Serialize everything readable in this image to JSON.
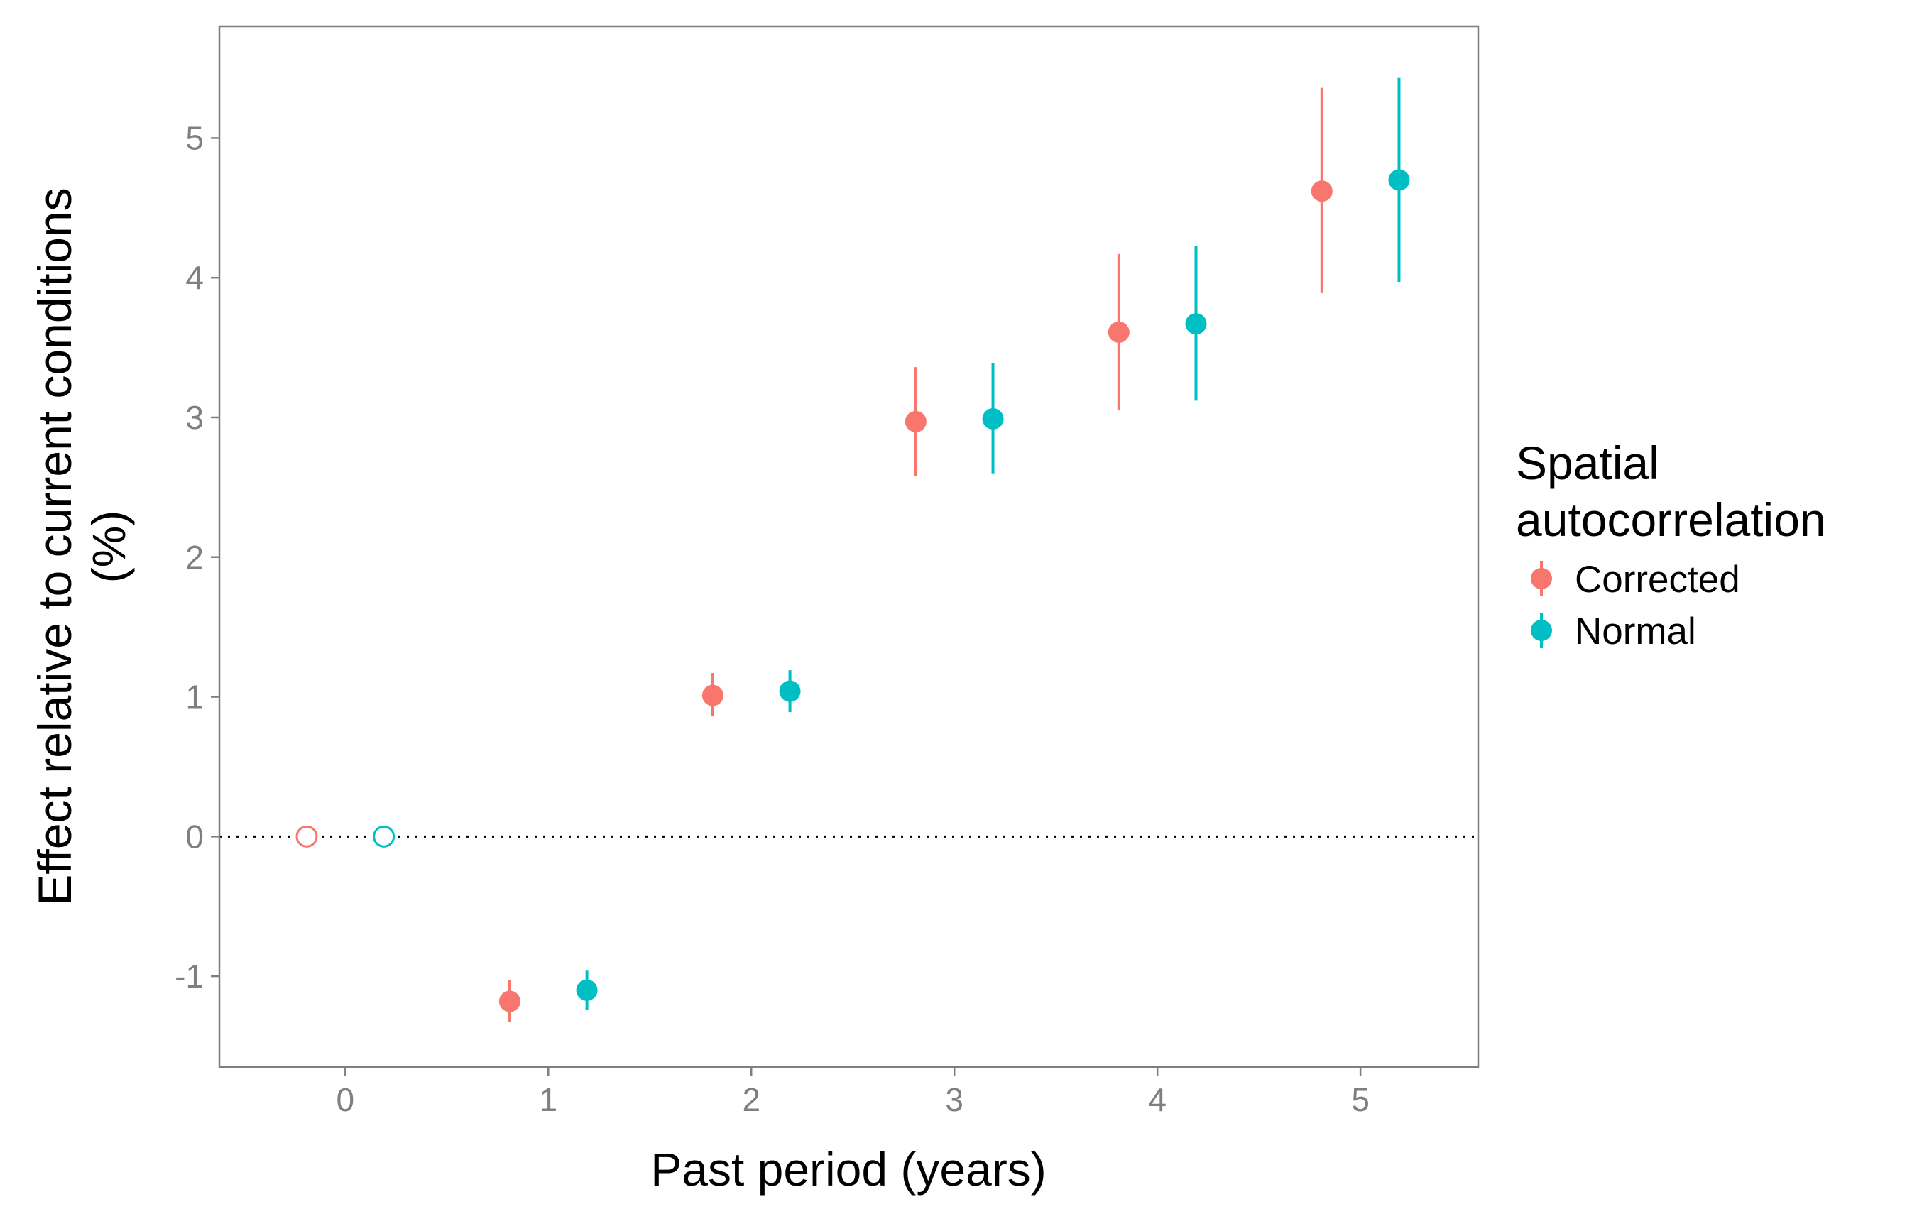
{
  "chart_data": {
    "type": "scatter",
    "subtype": "pointrange",
    "xlabel": "Past period (years)",
    "ylabel_lines": [
      "Effect relative to current conditions",
      "(%)"
    ],
    "x_ticks": [
      "0",
      "1",
      "2",
      "3",
      "4",
      "5"
    ],
    "y_ticks": [
      "-1",
      "0",
      "1",
      "2",
      "3",
      "4",
      "5"
    ],
    "xlim": [
      -0.62,
      5.58
    ],
    "ylim": [
      -1.65,
      5.8
    ],
    "dodge": 0.19,
    "reference_line": {
      "y": 0,
      "style": "dotted"
    },
    "legend": {
      "title_lines": [
        "Spatial",
        "autocorrelation"
      ],
      "position": "right"
    },
    "series": [
      {
        "name": "Corrected",
        "color": "#F8766D",
        "points": [
          {
            "x": 0,
            "y": 0,
            "lo": 0,
            "hi": 0,
            "filled": false
          },
          {
            "x": 1,
            "y": -1.18,
            "lo": -1.33,
            "hi": -1.03,
            "filled": true
          },
          {
            "x": 2,
            "y": 1.01,
            "lo": 0.86,
            "hi": 1.17,
            "filled": true
          },
          {
            "x": 3,
            "y": 2.97,
            "lo": 2.58,
            "hi": 3.36,
            "filled": true
          },
          {
            "x": 4,
            "y": 3.61,
            "lo": 3.05,
            "hi": 4.17,
            "filled": true
          },
          {
            "x": 5,
            "y": 4.62,
            "lo": 3.89,
            "hi": 5.36,
            "filled": true
          }
        ]
      },
      {
        "name": "Normal",
        "color": "#00BFC4",
        "points": [
          {
            "x": 0,
            "y": 0,
            "lo": 0,
            "hi": 0,
            "filled": false
          },
          {
            "x": 1,
            "y": -1.1,
            "lo": -1.24,
            "hi": -0.96,
            "filled": true
          },
          {
            "x": 2,
            "y": 1.04,
            "lo": 0.89,
            "hi": 1.19,
            "filled": true
          },
          {
            "x": 3,
            "y": 2.99,
            "lo": 2.6,
            "hi": 3.39,
            "filled": true
          },
          {
            "x": 4,
            "y": 3.67,
            "lo": 3.12,
            "hi": 4.23,
            "filled": true
          },
          {
            "x": 5,
            "y": 4.7,
            "lo": 3.97,
            "hi": 5.43,
            "filled": true
          }
        ]
      }
    ]
  }
}
